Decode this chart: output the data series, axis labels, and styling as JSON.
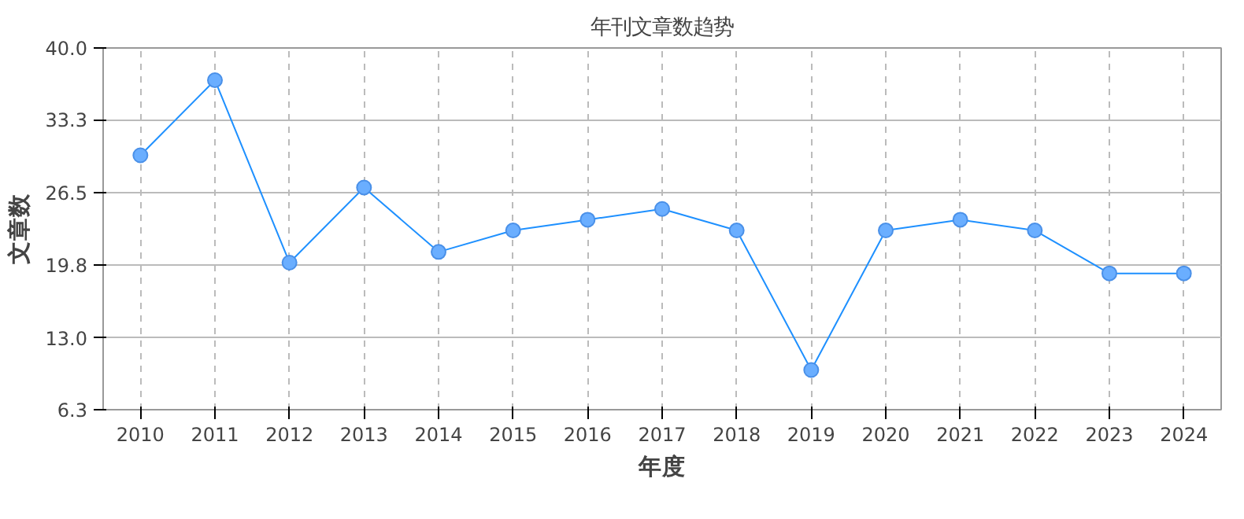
{
  "chart_data": {
    "type": "line",
    "title": "年刊文章数趋势",
    "xlabel": "年度",
    "ylabel": "文章数",
    "categories": [
      "2010",
      "2011",
      "2012",
      "2013",
      "2014",
      "2015",
      "2016",
      "2017",
      "2018",
      "2019",
      "2020",
      "2021",
      "2022",
      "2023",
      "2024"
    ],
    "series": [
      {
        "color": "#1e90ff",
        "values": [
          30,
          37,
          20,
          27,
          21,
          23,
          24,
          25,
          23,
          10,
          23,
          24,
          23,
          19,
          19
        ]
      }
    ],
    "ylim": [
      6.3,
      40.0
    ],
    "yticks": [
      {
        "value": 6.3,
        "label": "6.3"
      },
      {
        "value": 13.0,
        "label": "13.0"
      },
      {
        "value": 19.8,
        "label": "19.8"
      },
      {
        "value": 26.5,
        "label": "26.5"
      },
      {
        "value": 33.3,
        "label": "33.3"
      },
      {
        "value": 40.0,
        "label": "40.0"
      }
    ],
    "grid": true,
    "marker": "circle",
    "line_style": "solid"
  }
}
